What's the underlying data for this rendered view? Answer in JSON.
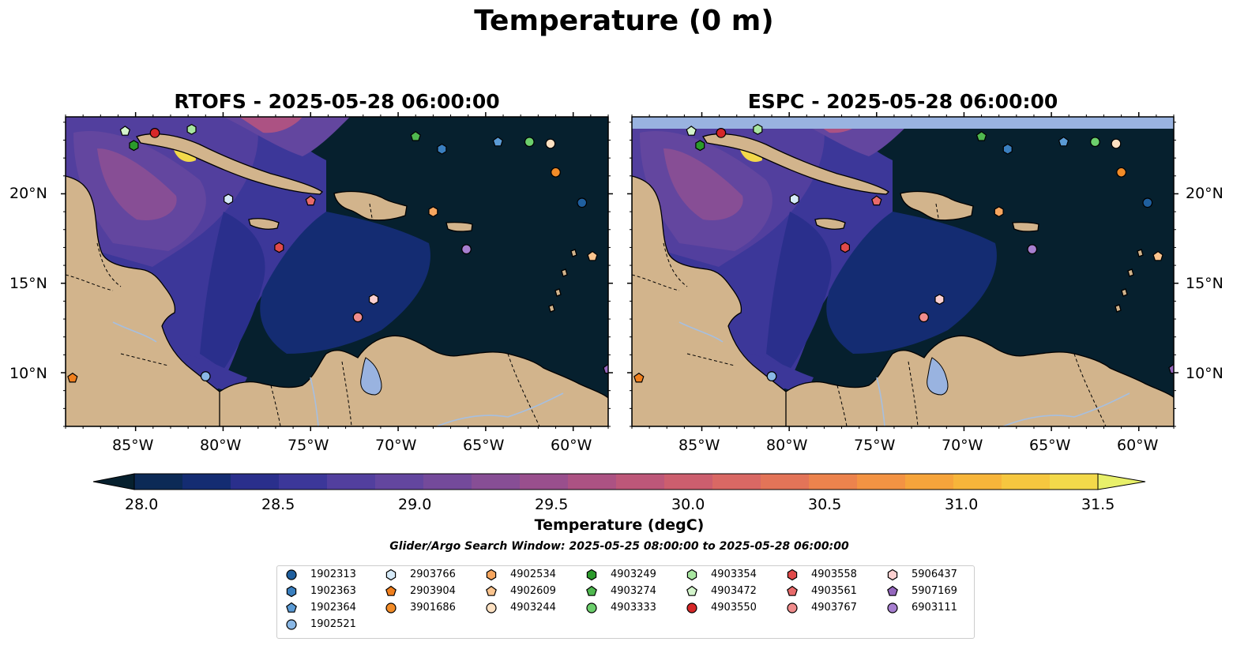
{
  "figure": {
    "title": "Temperature (0 m)"
  },
  "panels": [
    {
      "id": "rtofs",
      "title": "RTOFS - 2025-05-28 06:00:00"
    },
    {
      "id": "espc",
      "title": "ESPC - 2025-05-28 06:00:00"
    }
  ],
  "axes": {
    "x_ticks": [
      "85°W",
      "80°W",
      "75°W",
      "70°W",
      "65°W",
      "60°W"
    ],
    "y_ticks": [
      "20°N",
      "15°N",
      "10°N"
    ],
    "lon_range": [
      -89,
      -58
    ],
    "lat_range": [
      7,
      24.3
    ]
  },
  "colorbar": {
    "label": "Temperature (degC)",
    "ticks": [
      "28.0",
      "28.5",
      "29.0",
      "29.5",
      "30.0",
      "30.5",
      "31.0",
      "31.5"
    ],
    "range": [
      27.75,
      31.5
    ],
    "extend": "both",
    "colors": [
      "#06202e",
      "#0c2a56",
      "#142c72",
      "#2a2f8c",
      "#3c3799",
      "#523f9e",
      "#63469f",
      "#744a9b",
      "#874e95",
      "#994f8d",
      "#ac5283",
      "#bd5779",
      "#cc5e6e",
      "#d96864",
      "#e37458",
      "#ec834d",
      "#f39343",
      "#f6a43b",
      "#f7b53a",
      "#f6c73f",
      "#f3d94a",
      "#e8f06a"
    ]
  },
  "search_window": "Glider/Argo Search Window: 2025-05-25 08:00:00 to 2025-05-28 06:00:00",
  "map_colors": {
    "land": "#d2b48c",
    "ocean_deep": "#06202e",
    "lake": "#99b3e0",
    "river": "#a6bfe0"
  },
  "platforms": [
    {
      "id": "1902313",
      "marker": "circle",
      "color": "#1f5f9e",
      "lon": -59.5,
      "lat": 19.5
    },
    {
      "id": "1902363",
      "marker": "hexagon",
      "color": "#3a7fbf",
      "lon": -67.5,
      "lat": 22.5
    },
    {
      "id": "1902364",
      "marker": "pentagon",
      "color": "#5b9bd5",
      "lon": -64.3,
      "lat": 22.9
    },
    {
      "id": "1902521",
      "marker": "circle",
      "color": "#8ab8e6",
      "lon": -81.0,
      "lat": 9.8
    },
    {
      "id": "2903766",
      "marker": "hexagon",
      "color": "#d6eaf8",
      "lon": -79.7,
      "lat": 19.7
    },
    {
      "id": "2903904",
      "marker": "pentagon",
      "color": "#f07f1d",
      "lon": -88.6,
      "lat": 9.7
    },
    {
      "id": "3901686",
      "marker": "circle",
      "color": "#f28c28",
      "lon": -61.0,
      "lat": 21.2
    },
    {
      "id": "4902534",
      "marker": "hexagon",
      "color": "#f7a65f",
      "lon": -68.0,
      "lat": 19.0
    },
    {
      "id": "4902609",
      "marker": "pentagon",
      "color": "#fbc48e",
      "lon": -58.9,
      "lat": 16.5
    },
    {
      "id": "4903244",
      "marker": "circle",
      "color": "#fde1c2",
      "lon": -61.3,
      "lat": 22.8
    },
    {
      "id": "4903249",
      "marker": "hexagon",
      "color": "#2b9a2b",
      "lon": -85.1,
      "lat": 22.7
    },
    {
      "id": "4903274",
      "marker": "pentagon",
      "color": "#4fb84f",
      "lon": -69.0,
      "lat": 23.2
    },
    {
      "id": "4903333",
      "marker": "circle",
      "color": "#6ccf6c",
      "lon": -62.5,
      "lat": 22.9
    },
    {
      "id": "4903354",
      "marker": "hexagon",
      "color": "#a8e6a0",
      "lon": -81.8,
      "lat": 23.6
    },
    {
      "id": "4903472",
      "marker": "pentagon",
      "color": "#d4f5cc",
      "lon": -85.6,
      "lat": 23.5
    },
    {
      "id": "4903550",
      "marker": "circle",
      "color": "#d62728",
      "lon": -83.9,
      "lat": 23.4
    },
    {
      "id": "4903558",
      "marker": "hexagon",
      "color": "#e04a4a",
      "lon": -76.8,
      "lat": 17.0
    },
    {
      "id": "4903561",
      "marker": "pentagon",
      "color": "#e86a6a",
      "lon": -75.0,
      "lat": 19.6
    },
    {
      "id": "4903767",
      "marker": "circle",
      "color": "#f08c8c",
      "lon": -72.3,
      "lat": 13.1
    },
    {
      "id": "5906437",
      "marker": "hexagon",
      "color": "#fcd0d0",
      "lon": -71.4,
      "lat": 14.1
    },
    {
      "id": "5907169",
      "marker": "pentagon",
      "color": "#9467bd",
      "lon": -58.0,
      "lat": 10.2
    },
    {
      "id": "6903111",
      "marker": "circle",
      "color": "#a77fd0",
      "lon": -66.1,
      "lat": 16.9
    }
  ]
}
